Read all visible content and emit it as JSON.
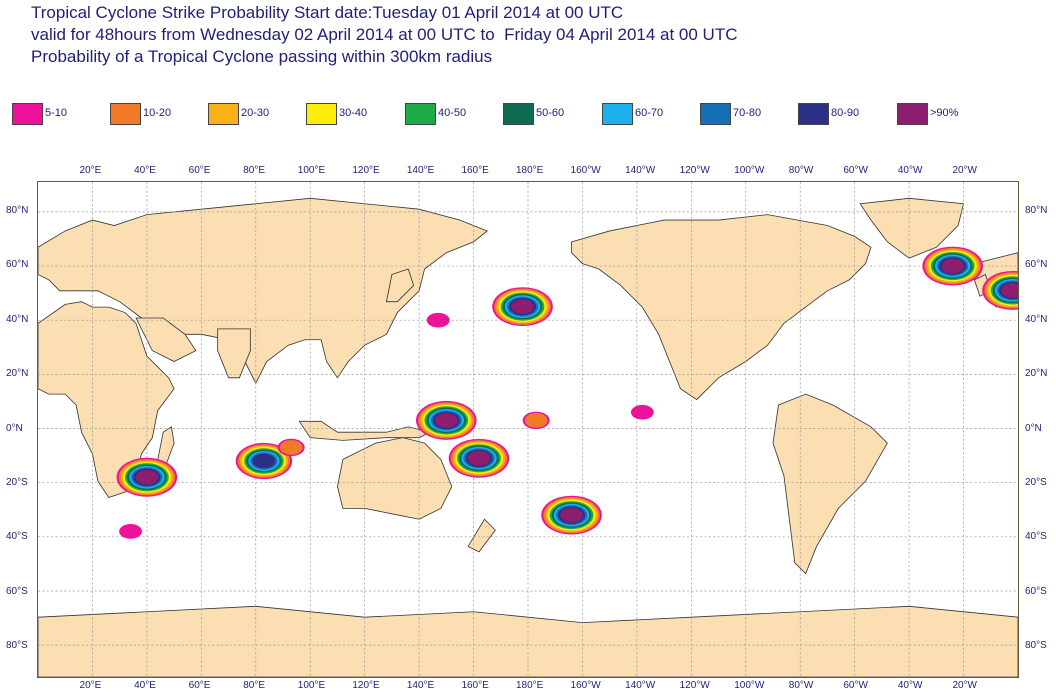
{
  "title": {
    "line1": "Tropical Cyclone Strike Probability Start date:Tuesday 01 April 2014 at 00 UTC",
    "line2": "valid for 48hours from Wednesday 02 April 2014 at 00 UTC to  Friday 04 April 2014 at 00 UTC",
    "line3": "Probability of a Tropical Cyclone passing within 300km radius"
  },
  "legend": [
    {
      "label": "5-10",
      "color": "#ee1199"
    },
    {
      "label": "10-20",
      "color": "#f07a28"
    },
    {
      "label": "20-30",
      "color": "#f8b218"
    },
    {
      "label": "30-40",
      "color": "#fcee0a"
    },
    {
      "label": "40-50",
      "color": "#1faa48"
    },
    {
      "label": "50-60",
      "color": "#0c6b50"
    },
    {
      "label": "60-70",
      "color": "#1db2ee"
    },
    {
      "label": "70-80",
      "color": "#1570b8"
    },
    {
      "label": "80-90",
      "color": "#2b2f86"
    },
    {
      "label": ">90%",
      "color": "#8d1d6e"
    }
  ],
  "colors": {
    "land": "#fbdeb2",
    "ocean": "#ffffff",
    "coastline": "#333333",
    "grid": "#9a9a9a",
    "text": "#1f1f7a"
  },
  "axes": {
    "longitude_labels": [
      "20°E",
      "40°E",
      "60°E",
      "80°E",
      "100°E",
      "120°E",
      "140°E",
      "160°E",
      "180°E",
      "160°W",
      "140°W",
      "120°W",
      "100°W",
      "80°W",
      "60°W",
      "40°W",
      "20°W"
    ],
    "latitude_labels": [
      "80°N",
      "60°N",
      "40°N",
      "20°N",
      "0°N",
      "20°S",
      "40°S",
      "60°S",
      "80°S"
    ]
  },
  "probability_areas": [
    {
      "name": "Indian Ocean east of Madagascar",
      "peak": ">90%",
      "lon": 40,
      "lat": -18
    },
    {
      "name": "Indian Ocean near 80E",
      "peak": "80-90",
      "lon": 83,
      "lat": -12
    },
    {
      "name": "Indian Ocean band toward Indonesia",
      "peak": "10-20",
      "lon": 93,
      "lat": -7
    },
    {
      "name": "South of Africa",
      "peak": "5-10",
      "lon": 34,
      "lat": -38
    },
    {
      "name": "East of Japan",
      "peak": "5-10",
      "lon": 147,
      "lat": 40
    },
    {
      "name": "North Pacific",
      "peak": ">90%",
      "lon": 178,
      "lat": 45
    },
    {
      "name": "West Pacific near equator",
      "peak": ">90%",
      "lon": 150,
      "lat": 3
    },
    {
      "name": "Central Pacific near equator",
      "peak": "10-20",
      "lon": 183,
      "lat": 3
    },
    {
      "name": "Coral Sea",
      "peak": ">90%",
      "lon": 162,
      "lat": -11
    },
    {
      "name": "South Pacific",
      "peak": ">90%",
      "lon": 196,
      "lat": -32
    },
    {
      "name": "East Pacific near equator",
      "peak": "5-10",
      "lon": 222,
      "lat": 6
    },
    {
      "name": "North Atlantic south of Iceland",
      "peak": ">90%",
      "lon": 336,
      "lat": 60
    },
    {
      "name": "North Atlantic west of Europe",
      "peak": ">90%",
      "lon": 358,
      "lat": 51
    }
  ]
}
